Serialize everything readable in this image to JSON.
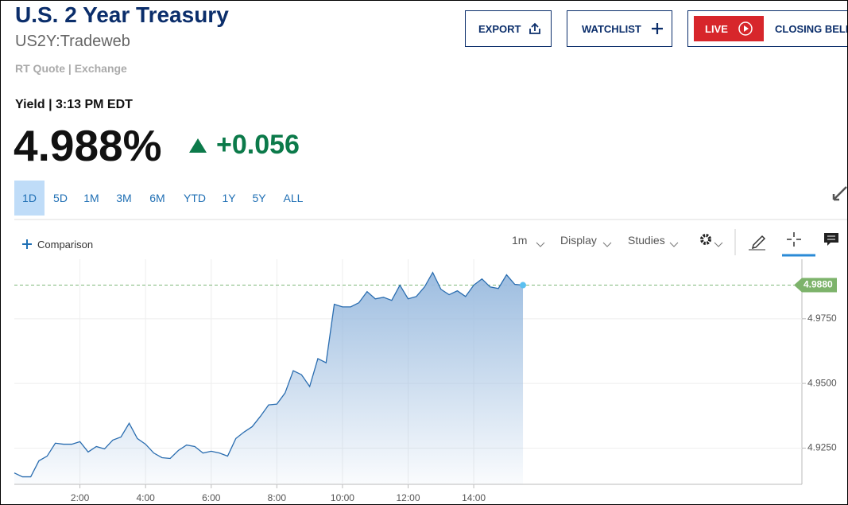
{
  "header": {
    "title": "U.S. 2 Year Treasury",
    "symbol": "US2Y:Tradeweb",
    "source": "RT Quote | Exchange",
    "quote_label": "Yield | 3:13 PM EDT",
    "price": "4.988%",
    "change": "+0.056"
  },
  "buttons": {
    "export": "EXPORT",
    "watchlist": "WATCHLIST",
    "live": "LIVE",
    "closing_bell": "CLOSING BELL"
  },
  "range_tabs": {
    "items": [
      "1D",
      "5D",
      "1M",
      "3M",
      "6M",
      "YTD",
      "1Y",
      "5Y",
      "ALL"
    ],
    "active": "1D"
  },
  "toolbar": {
    "comparison": "Comparison",
    "interval": "1m",
    "display": "Display",
    "studies": "Studies"
  },
  "chart_data": {
    "type": "area",
    "color": "#2a6db0",
    "x": [
      0,
      0.25,
      0.5,
      0.75,
      1,
      1.25,
      1.5,
      1.75,
      2,
      2.25,
      2.5,
      2.75,
      3,
      3.25,
      3.5,
      3.75,
      4,
      4.25,
      4.5,
      4.75,
      5,
      5.25,
      5.5,
      5.75,
      6,
      6.25,
      6.5,
      6.75,
      7,
      7.25,
      7.5,
      7.75,
      8,
      8.25,
      8.5,
      8.75,
      9,
      9.25,
      9.5,
      9.75,
      10,
      10.25,
      10.5,
      10.75,
      11,
      11.25,
      11.5,
      11.75,
      12,
      12.25,
      12.5,
      12.75,
      13,
      13.25,
      13.5,
      13.75,
      14,
      14.25,
      14.5,
      14.75,
      15,
      15.25,
      15.5
    ],
    "values": [
      4.9154,
      4.9139,
      4.9139,
      4.9201,
      4.9219,
      4.9269,
      4.9265,
      4.9265,
      4.9275,
      4.9235,
      4.9256,
      4.9247,
      4.9281,
      4.9293,
      4.9346,
      4.9287,
      4.9265,
      4.9231,
      4.9213,
      4.921,
      4.9241,
      4.9262,
      4.9256,
      4.9231,
      4.9238,
      4.9231,
      4.9219,
      4.9287,
      4.9312,
      4.9333,
      4.9373,
      4.9417,
      4.942,
      4.9463,
      4.9549,
      4.9534,
      4.9488,
      4.9596,
      4.958,
      4.9806,
      4.9796,
      4.9796,
      4.9812,
      4.9855,
      4.9827,
      4.9833,
      4.9821,
      4.988,
      4.9827,
      4.9836,
      4.9873,
      4.9929,
      4.9864,
      4.9843,
      4.9858,
      4.9836,
      4.988,
      4.9904,
      4.9873,
      4.9867,
      4.992,
      4.9883,
      4.988
    ],
    "xlim": [
      0,
      24
    ],
    "xticks": [
      {
        "value": 2,
        "label": "2:00"
      },
      {
        "value": 4,
        "label": "4:00"
      },
      {
        "value": 6,
        "label": "6:00"
      },
      {
        "value": 8,
        "label": "8:00"
      },
      {
        "value": 10,
        "label": "10:00"
      },
      {
        "value": 12,
        "label": "12:00"
      },
      {
        "value": 14,
        "label": "14:00"
      }
    ],
    "ylim": [
      4.911,
      4.998
    ],
    "yticks": [
      {
        "value": 4.925,
        "label": "4.9250"
      },
      {
        "value": 4.95,
        "label": "4.9500"
      },
      {
        "value": 4.975,
        "label": "4.9750"
      }
    ],
    "last_price": {
      "value": 4.988,
      "label": "4.9880"
    },
    "grid": true
  }
}
